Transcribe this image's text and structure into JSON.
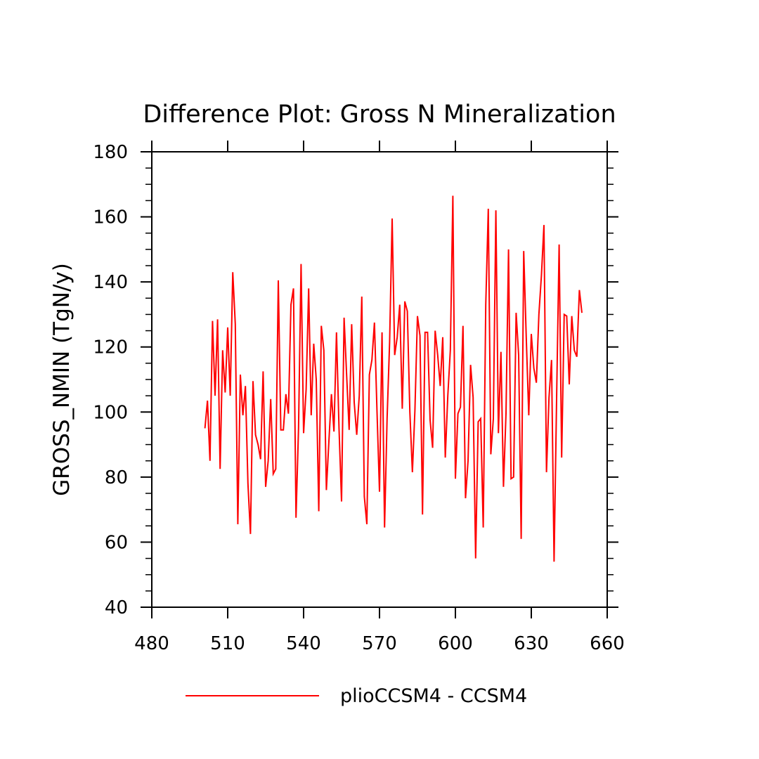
{
  "chart_data": {
    "type": "line",
    "title": "Difference Plot: Gross N Mineralization",
    "xlabel": "",
    "ylabel": "GROSS_NMIN  (TgN/y)",
    "xlim": [
      480,
      660
    ],
    "ylim": [
      40,
      180
    ],
    "xticks": [
      480,
      510,
      540,
      570,
      600,
      630,
      660
    ],
    "yticks": [
      40,
      60,
      80,
      100,
      120,
      140,
      160,
      180
    ],
    "grid": false,
    "legend_position": "bottom-center",
    "series": [
      {
        "name": "plioCCSM4 - CCSM4",
        "color": "#ff0000",
        "x": [
          501,
          502,
          503,
          504,
          505,
          506,
          507,
          508,
          509,
          510,
          511,
          512,
          513,
          514,
          515,
          516,
          517,
          518,
          519,
          520,
          521,
          522,
          523,
          524,
          525,
          526,
          527,
          528,
          529,
          530,
          531,
          532,
          533,
          534,
          535,
          536,
          537,
          538,
          539,
          540,
          541,
          542,
          543,
          544,
          545,
          546,
          547,
          548,
          549,
          550,
          551,
          552,
          553,
          554,
          555,
          556,
          557,
          558,
          559,
          560,
          561,
          562,
          563,
          564,
          565,
          566,
          567,
          568,
          569,
          570,
          571,
          572,
          573,
          574,
          575,
          576,
          577,
          578,
          579,
          580,
          581,
          582,
          583,
          584,
          585,
          586,
          587,
          588,
          589,
          590,
          591,
          592,
          593,
          594,
          595,
          596,
          597,
          598,
          599,
          600,
          601,
          602,
          603,
          604,
          605,
          606,
          607,
          608,
          609,
          610,
          611,
          612,
          613,
          614,
          615,
          616,
          617,
          618,
          619,
          620,
          621,
          622,
          623,
          624,
          625,
          626,
          627,
          628,
          629,
          630,
          631,
          632,
          633,
          634,
          635,
          636,
          637,
          638,
          639,
          640,
          641,
          642,
          643,
          644,
          645,
          646,
          647,
          648,
          649,
          650
        ],
        "values": [
          95,
          103.5,
          85,
          128,
          105,
          128.5,
          82.5,
          119,
          106,
          126,
          105,
          143,
          127,
          65.5,
          111.5,
          99,
          108,
          78,
          62.5,
          109.5,
          93,
          90,
          85.5,
          112.5,
          77,
          85,
          104,
          81,
          82.5,
          140.5,
          94.5,
          94.5,
          105.5,
          99.5,
          133,
          138,
          67.5,
          95,
          145.5,
          93.5,
          107,
          138,
          99,
          121,
          110,
          69.5,
          126.5,
          119,
          76,
          91,
          105.5,
          94,
          124.5,
          95,
          72.5,
          129,
          111.5,
          94.5,
          127,
          103,
          93,
          105,
          135.5,
          74,
          65.5,
          111.5,
          116,
          127.5,
          100.5,
          75.5,
          124.5,
          64.5,
          98,
          121.5,
          159.5,
          117.5,
          123,
          133,
          101,
          134,
          131,
          100,
          81.5,
          100.5,
          129.5,
          123.5,
          68.5,
          124.5,
          124.5,
          97.5,
          89,
          125,
          117.5,
          108,
          123,
          86,
          105,
          119,
          166.5,
          79.5,
          99.5,
          101.5,
          126.5,
          73.5,
          85,
          114.5,
          104.5,
          55,
          97,
          98,
          64.5,
          133,
          162.5,
          87,
          98,
          162,
          93.5,
          118.5,
          77,
          99.5,
          150,
          79.5,
          80,
          130.5,
          117.5,
          61,
          149.5,
          123,
          99,
          124,
          113.5,
          109,
          130,
          142,
          157.5,
          81.5,
          104.5,
          116,
          54,
          104,
          151.5,
          86,
          130,
          129.5,
          108.5,
          129.5,
          119,
          117,
          137.5,
          130.5
        ]
      }
    ],
    "colors": {
      "line": "#ff0000",
      "axis": "#000000",
      "background": "#ffffff"
    }
  }
}
